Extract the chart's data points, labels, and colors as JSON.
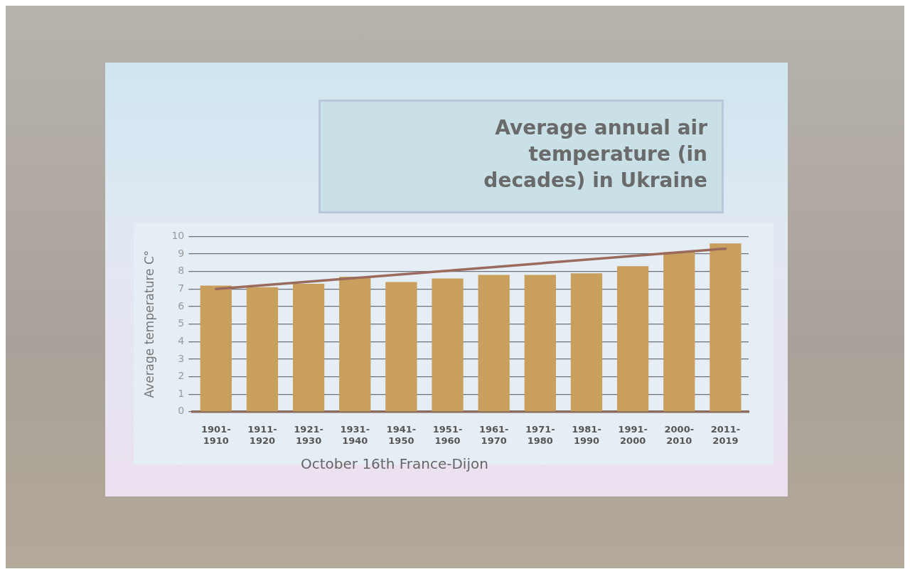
{
  "chart_data": {
    "type": "bar",
    "title": "Average annual air temperature (in decades) in Ukraine",
    "ylabel": "Average temperature C°",
    "categories": [
      "1901-1910",
      "1911-1920",
      "1921-1930",
      "1931-1940",
      "1941-1950",
      "1951-1960",
      "1961-1970",
      "1971-1980",
      "1981-1990",
      "1991-2000",
      "2000-2010",
      "2011-2019"
    ],
    "series": [
      {
        "color": "#c99f5e",
        "values": [
          7.2,
          7.1,
          7.3,
          7.7,
          7.4,
          7.6,
          7.8,
          7.8,
          7.9,
          8.3,
          9.1,
          9.6
        ]
      },
      {
        "type": "line",
        "color": "#9a6a5c",
        "x": [
          "1901-1910",
          "2011-2019"
        ],
        "values": [
          7.0,
          9.3
        ]
      }
    ],
    "ylim": [
      0,
      10
    ],
    "yticks": [
      0,
      1,
      2,
      3,
      4,
      5,
      6,
      7,
      8,
      9,
      10
    ],
    "grid": "y",
    "legend": false,
    "annotations": [
      "October 16th France-Dijon"
    ]
  }
}
